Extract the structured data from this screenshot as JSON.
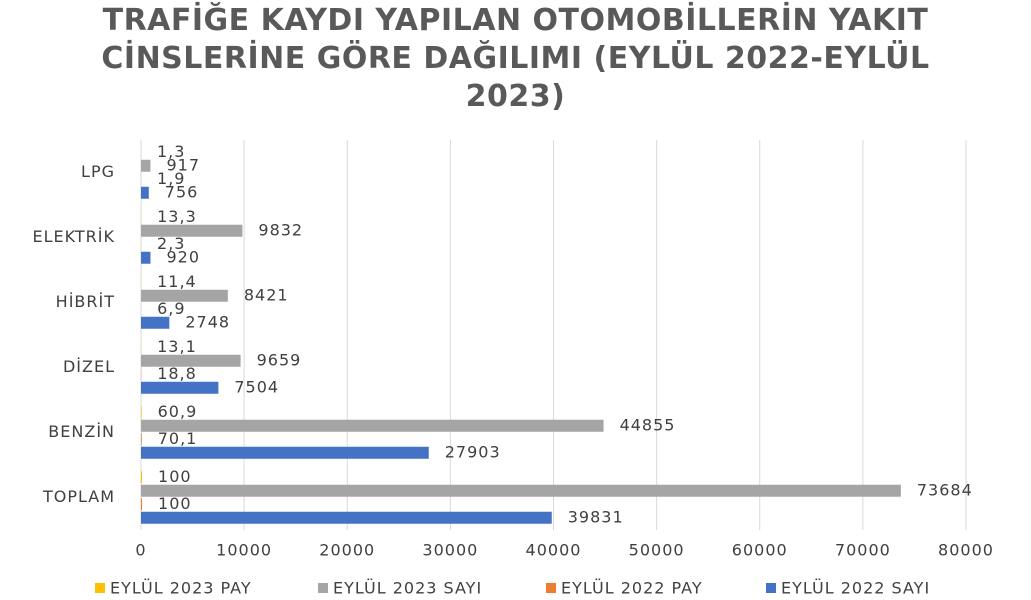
{
  "chart_data": {
    "type": "hbar",
    "title": "TRAFİĞE KAYDI YAPILAN OTOMOBİLLERİN YAKIT CİNSLERİNE GÖRE DAĞILIMI (EYLÜL 2022-EYLÜL 2023)",
    "categories": [
      "TOPLAM",
      "BENZİN",
      "DİZEL",
      "HİBRİT",
      "ELEKTRİK",
      "LPG"
    ],
    "series": [
      {
        "name": "EYLÜL 2022 SAYI",
        "color": "#4472c4",
        "values": [
          39831,
          27903,
          7504,
          2748,
          920,
          756
        ]
      },
      {
        "name": "EYLÜL 2022 PAY",
        "color": "#ed7d31",
        "values": [
          100,
          70.1,
          18.8,
          6.9,
          2.3,
          1.9
        ],
        "value_labels": [
          "100",
          "70,1",
          "18,8",
          "6,9",
          "2,3",
          "1,9"
        ]
      },
      {
        "name": "EYLÜL 2023 SAYI",
        "color": "#a5a5a5",
        "values": [
          73684,
          44855,
          9659,
          8421,
          9832,
          917
        ]
      },
      {
        "name": "EYLÜL 2023 PAY",
        "color": "#ffc000",
        "values": [
          100,
          60.9,
          13.1,
          11.4,
          13.3,
          1.3
        ],
        "value_labels": [
          "100",
          "60,9",
          "13,1",
          "11,4",
          "13,3",
          "1,3"
        ]
      }
    ],
    "xlim": [
      0,
      80000
    ],
    "xticks": [
      0,
      10000,
      20000,
      30000,
      40000,
      50000,
      60000,
      70000,
      80000
    ],
    "grid": true,
    "legend": "bottom"
  }
}
